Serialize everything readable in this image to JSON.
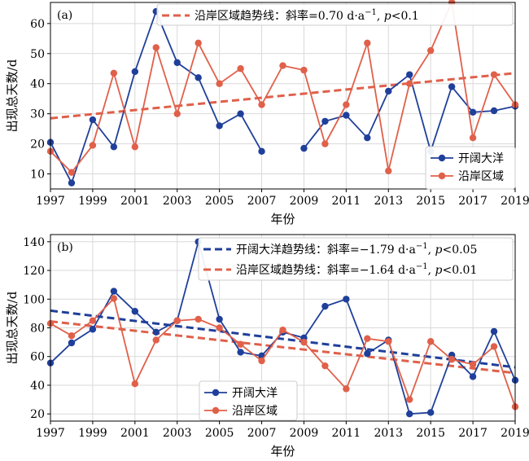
{
  "chart_data": [
    {
      "type": "line",
      "panel_label": "(a)",
      "xlabel": "年份",
      "ylabel": "出现总天数/d",
      "xlim": [
        1997,
        2019
      ],
      "ylim": [
        5,
        67
      ],
      "xticks": [
        1997,
        1999,
        2001,
        2003,
        2005,
        2007,
        2009,
        2011,
        2013,
        2015,
        2017,
        2019
      ],
      "yticks": [
        10,
        20,
        30,
        40,
        50,
        60
      ],
      "grid": true,
      "legend_placement": "lower-right",
      "series": [
        {
          "name": "开阔大洋",
          "color": "#1f3f9a",
          "x": [
            1997,
            1998,
            1999,
            2000,
            2001,
            2002,
            2003,
            2004,
            2005,
            2006,
            2007,
            2008,
            2009,
            2010,
            2011,
            2012,
            2013,
            2014,
            2015,
            2016,
            2017,
            2018,
            2019
          ],
          "values": [
            20.5,
            7,
            28,
            19,
            44,
            64,
            47,
            42,
            26,
            30,
            17.5,
            null,
            18.5,
            27.5,
            29.5,
            22,
            37.5,
            43,
            17.5,
            39,
            30.5,
            31,
            32.5
          ]
        },
        {
          "name": "沿岸区域",
          "color": "#e0604a",
          "x": [
            1997,
            1998,
            1999,
            2000,
            2001,
            2002,
            2003,
            2004,
            2005,
            2006,
            2007,
            2008,
            2009,
            2010,
            2011,
            2012,
            2013,
            2014,
            2015,
            2016,
            2017,
            2018,
            2019
          ],
          "values": [
            17.5,
            10.5,
            19.5,
            43.5,
            19,
            52,
            30,
            53.5,
            40,
            45,
            33,
            46,
            44.5,
            20,
            33,
            53.5,
            11,
            40,
            51,
            67,
            22,
            43,
            33
          ]
        }
      ],
      "trend_lines": [
        {
          "label_prefix": "沿岸区域趋势线：斜率=0.70 d·a",
          "label_sup": "−1",
          "label_p": "p",
          "label_suffix": "<0.1",
          "color": "#e0604a",
          "x": [
            1997,
            2019
          ],
          "y": [
            28.5,
            43.5
          ]
        }
      ]
    },
    {
      "type": "line",
      "panel_label": "(b)",
      "xlabel": "年份",
      "ylabel": "出现总天数/d",
      "xlim": [
        1997,
        2019
      ],
      "ylim": [
        15,
        145
      ],
      "xticks": [
        1997,
        1999,
        2001,
        2003,
        2005,
        2007,
        2009,
        2011,
        2013,
        2015,
        2017,
        2019
      ],
      "yticks": [
        20,
        40,
        60,
        80,
        100,
        120,
        140
      ],
      "grid": true,
      "legend_placement": "lower-center",
      "series": [
        {
          "name": "开阔大洋",
          "color": "#1f3f9a",
          "x": [
            1997,
            1998,
            1999,
            2000,
            2001,
            2002,
            2003,
            2004,
            2005,
            2006,
            2007,
            2008,
            2009,
            2010,
            2011,
            2012,
            2013,
            2014,
            2015,
            2016,
            2017,
            2018,
            2019
          ],
          "values": [
            55.5,
            69.5,
            79,
            105.5,
            91.5,
            77,
            85,
            140,
            86,
            63,
            60.5,
            77,
            73,
            95,
            100,
            62,
            71.5,
            20,
            21,
            61,
            46,
            77.5,
            43.5
          ]
        },
        {
          "name": "沿岸区域",
          "color": "#e0604a",
          "x": [
            1997,
            1998,
            1999,
            2000,
            2001,
            2002,
            2003,
            2004,
            2005,
            2006,
            2007,
            2008,
            2009,
            2010,
            2011,
            2012,
            2013,
            2014,
            2015,
            2016,
            2017,
            2018,
            2019
          ],
          "values": [
            83,
            74.5,
            85,
            100.5,
            41,
            71.5,
            85,
            86,
            80,
            68.5,
            57,
            78.5,
            70,
            53.5,
            37.5,
            72.5,
            70.5,
            30,
            70.5,
            58,
            54.5,
            67,
            25
          ]
        }
      ],
      "trend_lines": [
        {
          "label_prefix": "开阔大洋趋势线：斜率=−1.79 d·a",
          "label_sup": "−1",
          "label_p": "p",
          "label_suffix": "<0.05",
          "color": "#1f3f9a",
          "x": [
            1997,
            2019
          ],
          "y": [
            92,
            52.5
          ]
        },
        {
          "label_prefix": "沿岸区域趋势线：斜率=−1.64 d·a",
          "label_sup": "−1",
          "label_p": "p",
          "label_suffix": "<0.01",
          "color": "#e0604a",
          "x": [
            1997,
            2019
          ],
          "y": [
            84.5,
            48.5
          ]
        }
      ]
    }
  ]
}
